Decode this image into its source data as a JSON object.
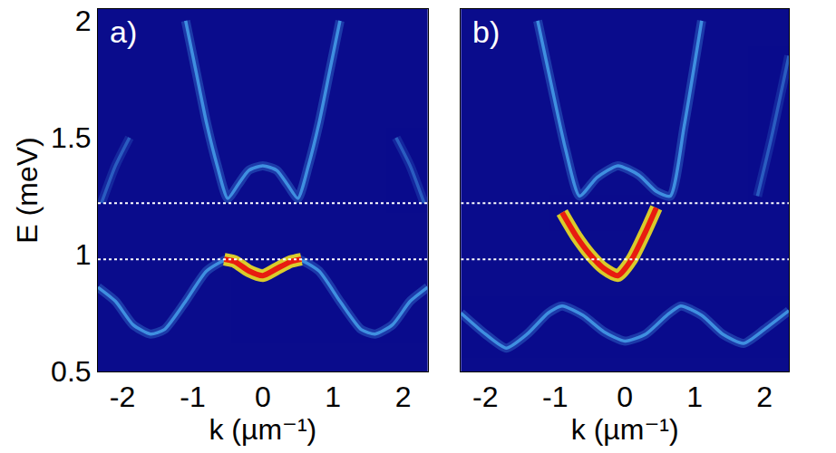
{
  "chart_data": [
    {
      "type": "line",
      "title": "a)",
      "x_label": "k (µm⁻¹)",
      "y_label": "E (meV)",
      "xlim": [
        -2.35,
        2.35
      ],
      "xticks": [
        -2,
        -1,
        0,
        1,
        2
      ],
      "ylim": [
        0.5,
        2.05
      ],
      "yticks": [
        0.5,
        1,
        1.5,
        2
      ],
      "tick_labels": true,
      "grid": false,
      "series": [
        {
          "color": "#3f8fe0",
          "line_style": "solid",
          "x": [
            -1.1,
            -0.95,
            -0.8,
            -0.65,
            -0.5,
            -0.35,
            -0.2,
            0,
            0.2,
            0.35,
            0.5,
            0.65,
            0.8,
            0.95,
            1.1
          ],
          "values": [
            2.0,
            1.78,
            1.56,
            1.38,
            1.24,
            1.3,
            1.36,
            1.38,
            1.36,
            1.3,
            1.24,
            1.38,
            1.56,
            1.78,
            2.0
          ]
        },
        {
          "color": "#2a5cc0",
          "line_style": "solid",
          "x": [
            -2.3,
            -2.1,
            -1.9
          ],
          "values": [
            1.22,
            1.38,
            1.5
          ]
        },
        {
          "color": "#2a5cc0",
          "line_style": "solid",
          "x": [
            1.9,
            2.1,
            2.3
          ],
          "values": [
            1.5,
            1.38,
            1.22
          ]
        },
        {
          "color": "#3f8fe0",
          "line_style": "solid",
          "x": [
            -2.35,
            -2.1,
            -1.85,
            -1.6,
            -1.4,
            -1.1,
            -0.8,
            -0.5,
            -0.3,
            0,
            0.3,
            0.5,
            0.8,
            1.1,
            1.4,
            1.6,
            1.85,
            2.1,
            2.35
          ],
          "values": [
            0.86,
            0.8,
            0.7,
            0.66,
            0.68,
            0.8,
            0.93,
            0.98,
            0.95,
            0.92,
            0.95,
            0.98,
            0.93,
            0.8,
            0.68,
            0.66,
            0.7,
            0.8,
            0.86
          ]
        },
        {
          "color": "#e81c10",
          "line_style": "solid",
          "x": [
            -0.55,
            -0.4,
            -0.2,
            0,
            0.2,
            0.4,
            0.55
          ],
          "values": [
            0.98,
            0.97,
            0.93,
            0.91,
            0.94,
            0.97,
            0.98
          ]
        },
        {
          "color": "#ffffff",
          "line_style": "dot",
          "x": [
            -2.35,
            2.35
          ],
          "values": [
            1.22,
            1.22
          ]
        },
        {
          "color": "#ffffff",
          "line_style": "dot",
          "x": [
            -2.35,
            2.35
          ],
          "values": [
            0.98,
            0.98
          ]
        }
      ]
    },
    {
      "type": "line",
      "title": "b)",
      "x_label": "k (µm⁻¹)",
      "xlim": [
        -2.35,
        2.35
      ],
      "xticks": [
        -2,
        -1,
        0,
        1,
        2
      ],
      "ylim": [
        0.5,
        2.05
      ],
      "yticks": [
        0.5,
        1,
        1.5,
        2
      ],
      "tick_labels": "x",
      "grid": false,
      "series": [
        {
          "color": "#3f8fe0",
          "line_style": "solid",
          "x": [
            -1.25,
            -1.05,
            -0.85,
            -0.65,
            -0.4,
            -0.1,
            0.2,
            0.45,
            0.65,
            0.85,
            1.1
          ],
          "values": [
            2.0,
            1.72,
            1.45,
            1.25,
            1.33,
            1.38,
            1.34,
            1.27,
            1.25,
            1.55,
            2.0
          ]
        },
        {
          "color": "#2a5cc0",
          "line_style": "solid",
          "x": [
            1.9,
            2.1,
            2.35
          ],
          "values": [
            1.25,
            1.5,
            1.85
          ]
        },
        {
          "color": "#3f8fe0",
          "line_style": "solid",
          "x": [
            -2.35,
            -2.0,
            -1.7,
            -1.4,
            -1.1,
            -0.9,
            -0.6,
            -0.3,
            0,
            0.3,
            0.6,
            0.8,
            1.1,
            1.4,
            1.7,
            2.0,
            2.35
          ],
          "values": [
            0.75,
            0.66,
            0.6,
            0.66,
            0.75,
            0.78,
            0.74,
            0.67,
            0.63,
            0.66,
            0.74,
            0.78,
            0.74,
            0.66,
            0.62,
            0.68,
            0.76
          ]
        },
        {
          "color": "#e81c10",
          "line_style": "solid",
          "x": [
            -0.9,
            -0.7,
            -0.5,
            -0.3,
            -0.1,
            0.1,
            0.3,
            0.45
          ],
          "values": [
            1.18,
            1.08,
            1.0,
            0.94,
            0.91,
            0.98,
            1.1,
            1.2
          ]
        },
        {
          "color": "#ffffff",
          "line_style": "dot",
          "x": [
            -2.35,
            2.35
          ],
          "values": [
            1.22,
            1.22
          ]
        },
        {
          "color": "#ffffff",
          "line_style": "dot",
          "x": [
            -2.35,
            2.35
          ],
          "values": [
            0.98,
            0.98
          ]
        }
      ]
    }
  ]
}
